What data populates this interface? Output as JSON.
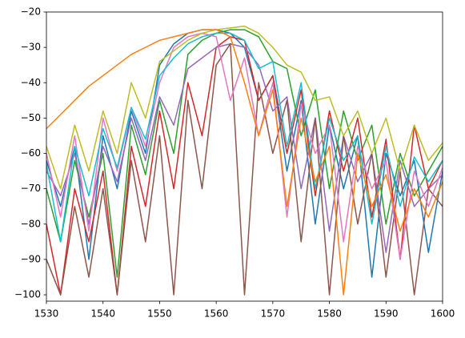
{
  "chart_data": {
    "type": "line",
    "x": [
      1530,
      1532.5,
      1535,
      1537.5,
      1540,
      1542.5,
      1545,
      1547.5,
      1550,
      1552.5,
      1555,
      1557.5,
      1560,
      1562.5,
      1565,
      1567.5,
      1570,
      1572.5,
      1575,
      1577.5,
      1580,
      1582.5,
      1585,
      1587.5,
      1590,
      1592.5,
      1595,
      1597.5,
      1600
    ],
    "series": [
      {
        "color": "#1f77b4",
        "values": [
          -62,
          -75,
          -58,
          -90,
          -55,
          -70,
          -48,
          -60,
          -35,
          -29,
          -26,
          -25,
          -25,
          -26,
          -30,
          -45,
          -38,
          -65,
          -45,
          -80,
          -52,
          -70,
          -55,
          -95,
          -60,
          -72,
          -62,
          -88,
          -65
        ]
      },
      {
        "color": "#2ca02c",
        "values": [
          -70,
          -85,
          -62,
          -78,
          -60,
          -95,
          -52,
          -66,
          -45,
          -60,
          -32,
          -28,
          -26,
          -25,
          -25,
          -27,
          -34,
          -36,
          -55,
          -42,
          -70,
          -48,
          -62,
          -52,
          -80,
          -60,
          -72,
          -65,
          -58
        ]
      },
      {
        "color": "#d62728",
        "values": [
          -80,
          -100,
          -70,
          -85,
          -65,
          -100,
          -58,
          -75,
          -48,
          -70,
          -40,
          -55,
          -30,
          -27,
          -28,
          -45,
          -38,
          -60,
          -42,
          -72,
          -48,
          -65,
          -50,
          -78,
          -56,
          -90,
          -52,
          -70,
          -62
        ]
      },
      {
        "color": "#9467bd",
        "values": [
          -65,
          -72,
          -60,
          -80,
          -58,
          -68,
          -50,
          -62,
          -44,
          -52,
          -36,
          -33,
          -30,
          -29,
          -30,
          -35,
          -48,
          -44,
          -70,
          -50,
          -82,
          -55,
          -68,
          -60,
          -88,
          -62,
          -75,
          -70,
          -66
        ]
      },
      {
        "color": "#8c564b",
        "values": [
          -90,
          -100,
          -75,
          -95,
          -70,
          -100,
          -62,
          -85,
          -55,
          -100,
          -45,
          -70,
          -35,
          -29,
          -100,
          -40,
          -60,
          -45,
          -85,
          -50,
          -100,
          -55,
          -80,
          -60,
          -95,
          -65,
          -100,
          -70,
          -75
        ]
      },
      {
        "color": "#e377c2",
        "values": [
          -60,
          -78,
          -55,
          -82,
          -50,
          -65,
          -47,
          -58,
          -40,
          -30,
          -27,
          -26,
          -27,
          -45,
          -33,
          -55,
          -40,
          -78,
          -46,
          -60,
          -52,
          -85,
          -58,
          -70,
          -62,
          -90,
          -65,
          -75,
          -64
        ]
      },
      {
        "color": "#17becf",
        "values": [
          -63,
          -85,
          -58,
          -72,
          -53,
          -64,
          -47,
          -56,
          -38,
          -33,
          -29,
          -27,
          -26,
          -26,
          -28,
          -36,
          -34,
          -58,
          -40,
          -70,
          -50,
          -62,
          -55,
          -80,
          -58,
          -75,
          -61,
          -68,
          -62
        ]
      },
      {
        "color": "#bcbd22",
        "values": [
          -58,
          -70,
          -52,
          -65,
          -48,
          -60,
          -40,
          -50,
          -34,
          -31,
          -28,
          -26,
          -25,
          -24.5,
          -24,
          -26,
          -30,
          -35,
          -37,
          -45,
          -44,
          -55,
          -48,
          -60,
          -50,
          -65,
          -52,
          -62,
          -57
        ]
      },
      {
        "color": "#ff7f0e",
        "values": [
          -53,
          -49,
          -45,
          -41,
          -38,
          -35,
          -32,
          -30,
          -28,
          -27,
          -26,
          -25,
          -25,
          -27,
          -40,
          -55,
          -42,
          -75,
          -50,
          -68,
          -58,
          -100,
          -60,
          -75,
          -66,
          -82,
          -70,
          -78,
          -68
        ]
      }
    ],
    "xlim": [
      1530,
      1600
    ],
    "xticks": [
      1530,
      1540,
      1550,
      1560,
      1570,
      1580,
      1590,
      1600
    ],
    "ylim": [
      -101.8,
      -20
    ],
    "yticks": [
      {
        "value": -100,
        "label": "−100"
      },
      {
        "value": -90,
        "label": "−90"
      },
      {
        "value": -80,
        "label": "−80"
      },
      {
        "value": -70,
        "label": "−70"
      },
      {
        "value": -60,
        "label": "−60"
      },
      {
        "value": -50,
        "label": "−50"
      },
      {
        "value": -40,
        "label": "−40"
      },
      {
        "value": -30,
        "label": "−30"
      },
      {
        "value": -20,
        "label": "−20"
      }
    ],
    "grid": false
  }
}
